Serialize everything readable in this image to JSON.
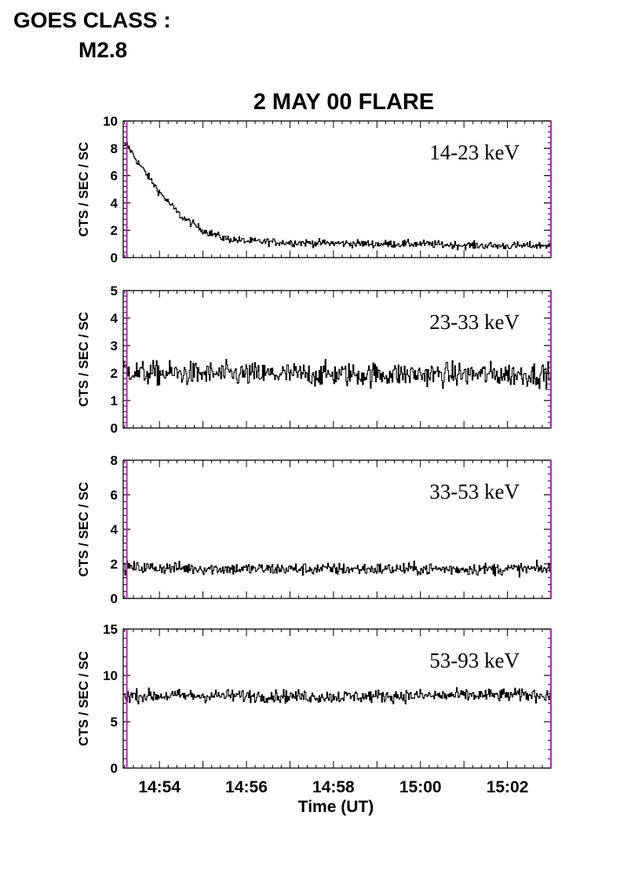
{
  "header": {
    "goes_label": "GOES CLASS :",
    "goes_value": "M2.8"
  },
  "colors": {
    "trace": "#000000",
    "marker": "#cc00cc",
    "axis": "#000000"
  },
  "chart_data": [
    {
      "type": "line",
      "title": "2 MAY 00 FLARE",
      "energy_band": "14-23 keV",
      "ylabel": "CTS / SEC / SC",
      "xlabel": "",
      "xlim": [
        "14:53:10",
        "15:03:00"
      ],
      "ylim": [
        0,
        10
      ],
      "yticks": [
        0,
        2,
        4,
        6,
        8,
        10
      ],
      "xticks": [
        "14:54",
        "14:56",
        "14:58",
        "15:00",
        "15:02"
      ],
      "x": [
        "14:53:10",
        "14:53:15",
        "14:53:30",
        "14:54:00",
        "14:54:30",
        "14:55:00",
        "14:55:30",
        "14:56:00",
        "14:57:00",
        "14:58:00",
        "14:59:00",
        "15:00:00",
        "15:01:00",
        "15:02:00",
        "15:03:00"
      ],
      "values": [
        8.0,
        8.3,
        7.0,
        4.8,
        3.0,
        2.0,
        1.4,
        1.2,
        1.1,
        1.05,
        1.0,
        1.0,
        0.9,
        0.85,
        0.9
      ],
      "noise": 0.14,
      "markers_x": [
        "14:53:15",
        "15:03:00"
      ]
    },
    {
      "type": "line",
      "title": "",
      "energy_band": "23-33 keV",
      "ylabel": "CTS / SEC / SC",
      "xlabel": "",
      "xlim": [
        "14:53:10",
        "15:03:00"
      ],
      "ylim": [
        0,
        5
      ],
      "yticks": [
        0,
        1,
        2,
        3,
        4,
        5
      ],
      "xticks": [
        "14:54",
        "14:56",
        "14:58",
        "15:00",
        "15:02"
      ],
      "x": [
        "14:53:10",
        "14:53:30",
        "14:56:00",
        "14:58:00",
        "15:00:00",
        "15:03:00"
      ],
      "values": [
        2.2,
        2.0,
        1.95,
        1.95,
        1.95,
        1.95
      ],
      "noise": 0.22,
      "markers_x": [
        "14:53:15",
        "15:03:00"
      ]
    },
    {
      "type": "line",
      "title": "",
      "energy_band": "33-53 keV",
      "ylabel": "CTS / SEC / SC",
      "xlabel": "",
      "xlim": [
        "14:53:10",
        "15:03:00"
      ],
      "ylim": [
        0,
        8
      ],
      "yticks": [
        0,
        2,
        4,
        6,
        8
      ],
      "xticks": [
        "14:54",
        "14:56",
        "14:58",
        "15:00",
        "15:02"
      ],
      "x": [
        "14:53:10",
        "14:56:00",
        "14:58:00",
        "15:00:00",
        "15:03:00"
      ],
      "values": [
        1.8,
        1.7,
        1.7,
        1.7,
        1.7
      ],
      "noise": 0.18,
      "markers_x": [
        "14:53:15",
        "15:03:00"
      ]
    },
    {
      "type": "line",
      "title": "",
      "energy_band": "53-93 keV",
      "ylabel": "CTS / SEC / SC",
      "xlabel": "Time (UT)",
      "xlim": [
        "14:53:10",
        "15:03:00"
      ],
      "ylim": [
        0,
        15
      ],
      "yticks": [
        0,
        5,
        10,
        15
      ],
      "xticks": [
        "14:54",
        "14:56",
        "14:58",
        "15:00",
        "15:02"
      ],
      "x": [
        "14:53:10",
        "14:56:00",
        "14:58:00",
        "15:00:00",
        "15:03:00"
      ],
      "values": [
        7.8,
        7.8,
        7.7,
        7.8,
        7.9
      ],
      "noise": 0.35,
      "markers_x": [
        "14:53:15",
        "15:03:00"
      ]
    }
  ]
}
